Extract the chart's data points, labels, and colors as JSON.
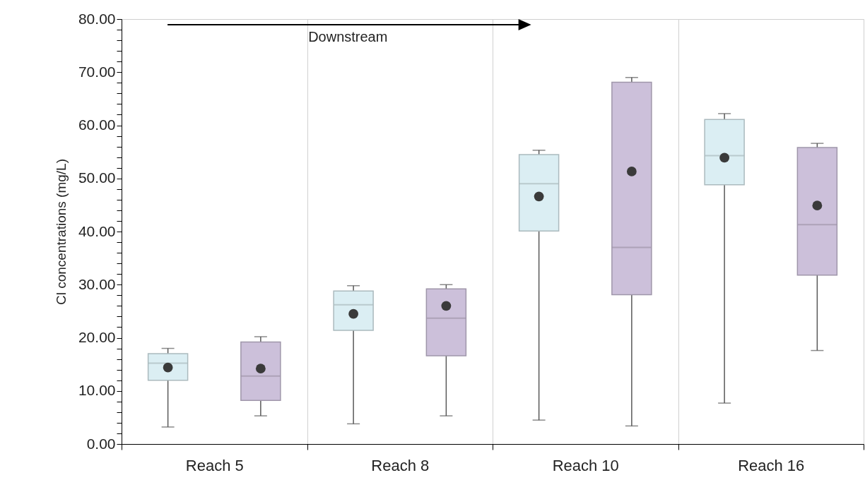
{
  "chart_data": {
    "type": "box",
    "ylabel": "Cl concentrations (mg/L)",
    "categories": [
      "Reach 5",
      "Reach 8",
      "Reach 10",
      "Reach 16"
    ],
    "ylim": [
      0,
      80
    ],
    "yticks": [
      {
        "value": 0,
        "label": "0.00"
      },
      {
        "value": 2,
        "label": null
      },
      {
        "value": 4,
        "label": null
      },
      {
        "value": 6,
        "label": null
      },
      {
        "value": 8,
        "label": null
      },
      {
        "value": 10,
        "label": "10.00"
      },
      {
        "value": 12,
        "label": null
      },
      {
        "value": 14,
        "label": null
      },
      {
        "value": 16,
        "label": null
      },
      {
        "value": 18,
        "label": null
      },
      {
        "value": 20,
        "label": "20.00"
      },
      {
        "value": 22,
        "label": null
      },
      {
        "value": 24,
        "label": null
      },
      {
        "value": 26,
        "label": null
      },
      {
        "value": 28,
        "label": null
      },
      {
        "value": 30,
        "label": "30.00"
      },
      {
        "value": 32,
        "label": null
      },
      {
        "value": 34,
        "label": null
      },
      {
        "value": 36,
        "label": null
      },
      {
        "value": 38,
        "label": null
      },
      {
        "value": 40,
        "label": "40.00"
      },
      {
        "value": 42,
        "label": null
      },
      {
        "value": 44,
        "label": null
      },
      {
        "value": 46,
        "label": null
      },
      {
        "value": 48,
        "label": null
      },
      {
        "value": 50,
        "label": "50.00"
      },
      {
        "value": 52,
        "label": null
      },
      {
        "value": 54,
        "label": null
      },
      {
        "value": 56,
        "label": null
      },
      {
        "value": 58,
        "label": null
      },
      {
        "value": 60,
        "label": "60.00"
      },
      {
        "value": 62,
        "label": null
      },
      {
        "value": 64,
        "label": null
      },
      {
        "value": 66,
        "label": null
      },
      {
        "value": 68,
        "label": null
      },
      {
        "value": 70,
        "label": "70.00"
      },
      {
        "value": 72,
        "label": null
      },
      {
        "value": 74,
        "label": null
      },
      {
        "value": 76,
        "label": null
      },
      {
        "value": 78,
        "label": null
      },
      {
        "value": 80,
        "label": "80.00"
      }
    ],
    "grid": "x",
    "annotations": [
      "Downstream"
    ],
    "series": [
      {
        "color": "#dbeef3",
        "boxes": [
          {
            "low": 3.2,
            "q1": 12.0,
            "median": 15.2,
            "q3": 17.0,
            "high": 18.0,
            "mean": 14.4
          },
          {
            "low": 3.8,
            "q1": 21.4,
            "median": 26.2,
            "q3": 28.8,
            "high": 29.8,
            "mean": 24.5
          },
          {
            "low": 4.5,
            "q1": 40.1,
            "median": 49.0,
            "q3": 54.5,
            "high": 55.3,
            "mean": 46.6
          },
          {
            "low": 7.7,
            "q1": 48.8,
            "median": 54.3,
            "q3": 61.1,
            "high": 62.2,
            "mean": 53.9
          }
        ]
      },
      {
        "color": "#ccc0da",
        "boxes": [
          {
            "low": 5.3,
            "q1": 8.2,
            "median": 12.8,
            "q3": 19.2,
            "high": 20.2,
            "mean": 14.2
          },
          {
            "low": 5.3,
            "q1": 16.6,
            "median": 23.7,
            "q3": 29.2,
            "high": 30.0,
            "mean": 26.0
          },
          {
            "low": 3.4,
            "q1": 28.1,
            "median": 37.0,
            "q3": 68.1,
            "high": 69.0,
            "mean": 51.3
          },
          {
            "low": 17.6,
            "q1": 31.8,
            "median": 41.3,
            "q3": 55.8,
            "high": 56.6,
            "mean": 44.9
          }
        ]
      }
    ]
  }
}
